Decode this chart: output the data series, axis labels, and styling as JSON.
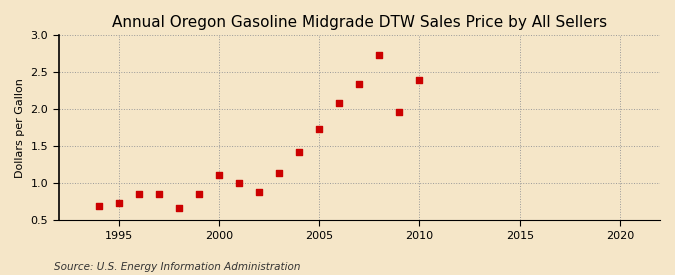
{
  "title": "Annual Oregon Gasoline Midgrade DTW Sales Price by All Sellers",
  "ylabel": "Dollars per Gallon",
  "source": "Source: U.S. Energy Information Administration",
  "background_color": "#f5e6c8",
  "years": [
    1994,
    1995,
    1996,
    1997,
    1998,
    1999,
    2000,
    2001,
    2002,
    2003,
    2004,
    2005,
    2006,
    2007,
    2008,
    2009,
    2010
  ],
  "values": [
    0.7,
    0.73,
    0.86,
    0.86,
    0.66,
    0.86,
    1.11,
    1.01,
    0.88,
    1.14,
    1.42,
    1.73,
    2.09,
    2.34,
    2.74,
    1.96,
    2.4
  ],
  "marker_color": "#cc0000",
  "marker": "s",
  "marker_size": 4,
  "xlim": [
    1992,
    2022
  ],
  "ylim": [
    0.5,
    3.0
  ],
  "xticks": [
    1995,
    2000,
    2005,
    2010,
    2015,
    2020
  ],
  "yticks": [
    0.5,
    1.0,
    1.5,
    2.0,
    2.5,
    3.0
  ],
  "grid_color": "#999999",
  "grid_style": ":",
  "title_fontsize": 11,
  "label_fontsize": 8,
  "tick_fontsize": 8,
  "source_fontsize": 7.5
}
